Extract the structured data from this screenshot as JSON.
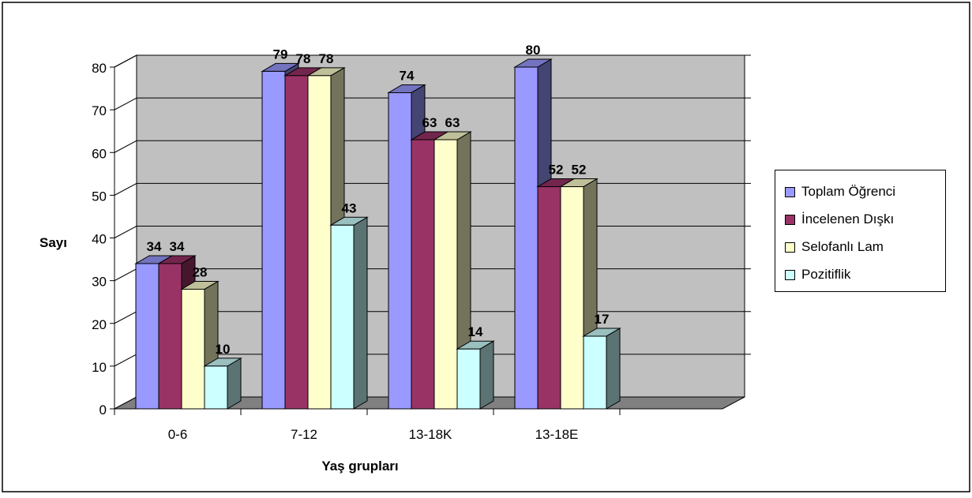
{
  "chart_data": {
    "type": "bar",
    "title": "",
    "xlabel": "Yaş grupları",
    "ylabel": "Sayı",
    "ylim": [
      0,
      80
    ],
    "yticks": [
      "0",
      "10",
      "20",
      "30",
      "40",
      "50",
      "60",
      "70",
      "80"
    ],
    "categories": [
      "0-6",
      "7-12",
      "13-18K",
      "13-18E"
    ],
    "series": [
      {
        "name": "Toplam Öğrenci",
        "color": "#9999FF",
        "values": [
          34,
          79,
          74,
          80
        ]
      },
      {
        "name": "İncelenen Dışkı",
        "color": "#993366",
        "values": [
          34,
          78,
          63,
          52
        ]
      },
      {
        "name": "Selofanlı Lam",
        "color": "#FFFFCC",
        "values": [
          28,
          78,
          63,
          52
        ]
      },
      {
        "name": "Pozitiflik",
        "color": "#CCFFFF",
        "values": [
          10,
          43,
          14,
          17
        ]
      }
    ],
    "grid": true,
    "three_d": true,
    "data_labels": true,
    "legend_position": "right",
    "wall_color": "#C0C0C0",
    "floor_color": "#808080"
  }
}
